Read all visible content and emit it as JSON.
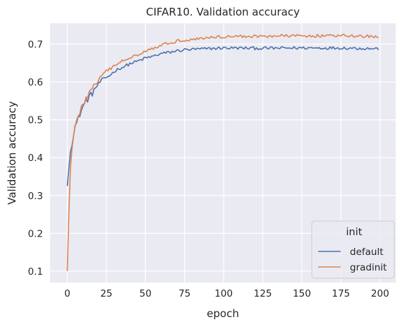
{
  "chart_data": {
    "type": "line",
    "title": "CIFAR10. Validation accuracy",
    "xlabel": "epoch",
    "ylabel": "Validation accuracy",
    "xlim": [
      -11,
      210
    ],
    "ylim": [
      0.07,
      0.755
    ],
    "xticks": [
      0,
      25,
      50,
      75,
      100,
      125,
      150,
      175,
      200
    ],
    "yticks": [
      0.1,
      0.2,
      0.3,
      0.4,
      0.5,
      0.6,
      0.7
    ],
    "ytick_labels": [
      "0.1",
      "0.2",
      "0.3",
      "0.4",
      "0.5",
      "0.6",
      "0.7"
    ],
    "grid": true,
    "background": "#eaeaf2",
    "legend": {
      "title": "init",
      "placement": "lower-right"
    },
    "series": [
      {
        "name": "default",
        "color": "#4c72b0",
        "keypoints": [
          [
            0,
            0.325
          ],
          [
            1,
            0.37
          ],
          [
            2,
            0.415
          ],
          [
            3,
            0.44
          ],
          [
            4,
            0.465
          ],
          [
            5,
            0.485
          ],
          [
            6,
            0.49
          ],
          [
            8,
            0.515
          ],
          [
            10,
            0.535
          ],
          [
            12,
            0.55
          ],
          [
            14,
            0.56
          ],
          [
            16,
            0.57
          ],
          [
            18,
            0.585
          ],
          [
            20,
            0.595
          ],
          [
            22,
            0.605
          ],
          [
            25,
            0.612
          ],
          [
            28,
            0.62
          ],
          [
            30,
            0.628
          ],
          [
            33,
            0.635
          ],
          [
            36,
            0.64
          ],
          [
            40,
            0.648
          ],
          [
            45,
            0.655
          ],
          [
            50,
            0.663
          ],
          [
            55,
            0.668
          ],
          [
            60,
            0.675
          ],
          [
            65,
            0.678
          ],
          [
            70,
            0.682
          ],
          [
            75,
            0.685
          ],
          [
            80,
            0.686
          ],
          [
            90,
            0.688
          ],
          [
            100,
            0.69
          ],
          [
            125,
            0.689
          ],
          [
            150,
            0.69
          ],
          [
            175,
            0.69
          ],
          [
            199,
            0.688
          ]
        ],
        "jitter": 0.004
      },
      {
        "name": "gradinit",
        "color": "#dd8452",
        "keypoints": [
          [
            0,
            0.1
          ],
          [
            1,
            0.25
          ],
          [
            2,
            0.37
          ],
          [
            3,
            0.43
          ],
          [
            4,
            0.46
          ],
          [
            5,
            0.478
          ],
          [
            6,
            0.495
          ],
          [
            8,
            0.52
          ],
          [
            10,
            0.54
          ],
          [
            12,
            0.557
          ],
          [
            14,
            0.57
          ],
          [
            16,
            0.582
          ],
          [
            18,
            0.595
          ],
          [
            20,
            0.605
          ],
          [
            22,
            0.617
          ],
          [
            25,
            0.628
          ],
          [
            28,
            0.636
          ],
          [
            30,
            0.643
          ],
          [
            33,
            0.65
          ],
          [
            36,
            0.657
          ],
          [
            40,
            0.665
          ],
          [
            45,
            0.673
          ],
          [
            50,
            0.682
          ],
          [
            55,
            0.69
          ],
          [
            60,
            0.697
          ],
          [
            65,
            0.703
          ],
          [
            70,
            0.708
          ],
          [
            75,
            0.711
          ],
          [
            80,
            0.713
          ],
          [
            90,
            0.717
          ],
          [
            100,
            0.72
          ],
          [
            125,
            0.721
          ],
          [
            150,
            0.722
          ],
          [
            175,
            0.722
          ],
          [
            199,
            0.72
          ]
        ],
        "jitter": 0.004
      }
    ]
  }
}
